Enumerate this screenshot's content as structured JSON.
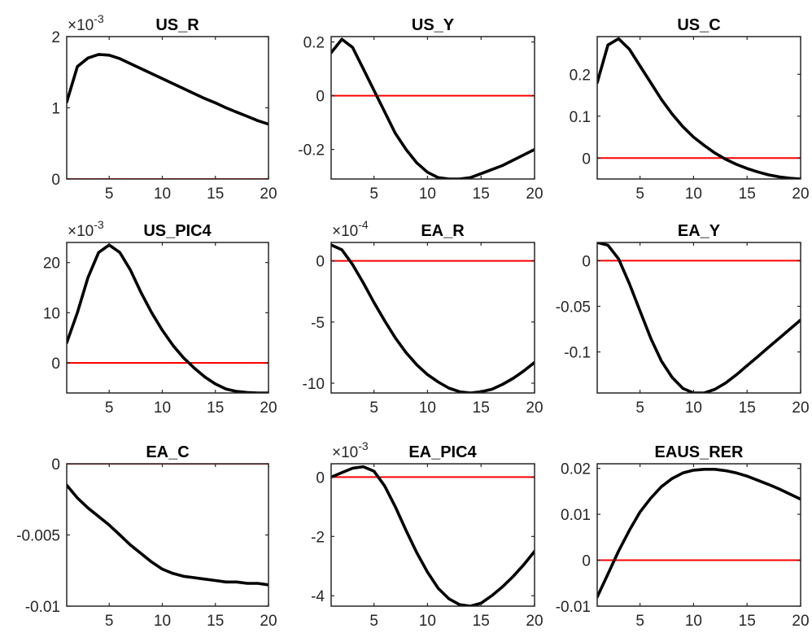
{
  "chart_data": [
    {
      "type": "line",
      "title": "US_R",
      "exponent": "-3",
      "xlim": [
        1,
        20
      ],
      "ylim": [
        0,
        2
      ],
      "xticks": [
        "5",
        "10",
        "15",
        "20"
      ],
      "yticks": [
        "0",
        "1",
        "2"
      ],
      "series": [
        {
          "color": "#000000",
          "x": [
            1,
            2,
            3,
            4,
            5,
            6,
            7,
            8,
            9,
            10,
            11,
            12,
            13,
            14,
            15,
            16,
            17,
            18,
            19,
            20
          ],
          "y": [
            1.08,
            1.58,
            1.7,
            1.75,
            1.74,
            1.69,
            1.62,
            1.55,
            1.48,
            1.41,
            1.34,
            1.27,
            1.2,
            1.13,
            1.07,
            1.0,
            0.94,
            0.88,
            0.82,
            0.77
          ]
        },
        {
          "color": "#ff0000",
          "x": [
            1,
            20
          ],
          "y": [
            0,
            0
          ]
        }
      ]
    },
    {
      "type": "line",
      "title": "US_Y",
      "xlim": [
        1,
        20
      ],
      "ylim": [
        -0.31,
        0.22
      ],
      "xticks": [
        "5",
        "10",
        "15",
        "20"
      ],
      "yticks": [
        "-0.2",
        "0",
        "0.2"
      ],
      "series": [
        {
          "color": "#000000",
          "x": [
            1,
            2,
            3,
            4,
            5,
            6,
            7,
            8,
            9,
            10,
            11,
            12,
            13,
            14,
            15,
            16,
            17,
            18,
            19,
            20
          ],
          "y": [
            0.16,
            0.21,
            0.18,
            0.1,
            0.02,
            -0.06,
            -0.14,
            -0.2,
            -0.25,
            -0.285,
            -0.305,
            -0.31,
            -0.31,
            -0.305,
            -0.29,
            -0.275,
            -0.26,
            -0.24,
            -0.22,
            -0.2
          ]
        },
        {
          "color": "#ff0000",
          "x": [
            1,
            20
          ],
          "y": [
            0,
            0
          ]
        }
      ]
    },
    {
      "type": "line",
      "title": "US_C",
      "xlim": [
        1,
        20
      ],
      "ylim": [
        -0.05,
        0.29
      ],
      "xticks": [
        "5",
        "10",
        "15",
        "20"
      ],
      "yticks": [
        "0",
        "0.1",
        "0.2"
      ],
      "series": [
        {
          "color": "#000000",
          "x": [
            1,
            2,
            3,
            4,
            5,
            6,
            7,
            8,
            9,
            10,
            11,
            12,
            13,
            14,
            15,
            16,
            17,
            18,
            19,
            20
          ],
          "y": [
            0.18,
            0.27,
            0.285,
            0.26,
            0.22,
            0.18,
            0.14,
            0.105,
            0.075,
            0.05,
            0.03,
            0.012,
            -0.003,
            -0.015,
            -0.025,
            -0.033,
            -0.04,
            -0.045,
            -0.048,
            -0.05
          ]
        },
        {
          "color": "#ff0000",
          "x": [
            1,
            20
          ],
          "y": [
            0,
            0
          ]
        }
      ]
    },
    {
      "type": "line",
      "title": "US_PIC4",
      "exponent": "-3",
      "xlim": [
        1,
        20
      ],
      "ylim": [
        -6,
        24
      ],
      "xticks": [
        "5",
        "10",
        "15",
        "20"
      ],
      "yticks": [
        "0",
        "10",
        "20"
      ],
      "series": [
        {
          "color": "#000000",
          "x": [
            1,
            2,
            3,
            4,
            5,
            6,
            7,
            8,
            9,
            10,
            11,
            12,
            13,
            14,
            15,
            16,
            17,
            18,
            19,
            20
          ],
          "y": [
            4,
            10,
            17,
            22,
            23.5,
            22,
            18.5,
            14,
            10,
            6.5,
            3.5,
            1,
            -1,
            -2.8,
            -4.2,
            -5.2,
            -5.7,
            -5.9,
            -6,
            -6
          ]
        },
        {
          "color": "#ff0000",
          "x": [
            1,
            20
          ],
          "y": [
            0,
            0
          ]
        }
      ]
    },
    {
      "type": "line",
      "title": "EA_R",
      "exponent": "-4",
      "xlim": [
        1,
        20
      ],
      "ylim": [
        -10.8,
        1.5
      ],
      "xticks": [
        "5",
        "10",
        "15",
        "20"
      ],
      "yticks": [
        "-10",
        "-5",
        "0"
      ],
      "series": [
        {
          "color": "#000000",
          "x": [
            1,
            2,
            3,
            4,
            5,
            6,
            7,
            8,
            9,
            10,
            11,
            12,
            13,
            14,
            15,
            16,
            17,
            18,
            19,
            20
          ],
          "y": [
            1.3,
            0.9,
            -0.3,
            -1.8,
            -3.4,
            -4.9,
            -6.3,
            -7.5,
            -8.5,
            -9.3,
            -9.9,
            -10.4,
            -10.7,
            -10.8,
            -10.7,
            -10.5,
            -10.1,
            -9.6,
            -9.0,
            -8.3
          ]
        },
        {
          "color": "#ff0000",
          "x": [
            1,
            20
          ],
          "y": [
            0,
            0
          ]
        }
      ]
    },
    {
      "type": "line",
      "title": "EA_Y",
      "xlim": [
        1,
        20
      ],
      "ylim": [
        -0.145,
        0.02
      ],
      "xticks": [
        "5",
        "10",
        "15",
        "20"
      ],
      "yticks": [
        "-0.1",
        "-0.05",
        "0"
      ],
      "series": [
        {
          "color": "#000000",
          "x": [
            1,
            2,
            3,
            4,
            5,
            6,
            7,
            8,
            9,
            10,
            11,
            12,
            13,
            14,
            15,
            16,
            17,
            18,
            19,
            20
          ],
          "y": [
            0.02,
            0.017,
            0.002,
            -0.025,
            -0.055,
            -0.085,
            -0.11,
            -0.128,
            -0.14,
            -0.145,
            -0.145,
            -0.141,
            -0.134,
            -0.125,
            -0.115,
            -0.105,
            -0.095,
            -0.085,
            -0.075,
            -0.065
          ]
        },
        {
          "color": "#ff0000",
          "x": [
            1,
            20
          ],
          "y": [
            0,
            0
          ]
        }
      ]
    },
    {
      "type": "line",
      "title": "EA_C",
      "xlim": [
        1,
        20
      ],
      "ylim": [
        -0.01,
        0
      ],
      "xticks": [
        "5",
        "10",
        "15",
        "20"
      ],
      "yticks": [
        "-0.01",
        "-0.005",
        "0"
      ],
      "series": [
        {
          "color": "#000000",
          "x": [
            1,
            2,
            3,
            4,
            5,
            6,
            7,
            8,
            9,
            10,
            11,
            12,
            13,
            14,
            15,
            16,
            17,
            18,
            19,
            20
          ],
          "y": [
            -0.0015,
            -0.0024,
            -0.0031,
            -0.0037,
            -0.0043,
            -0.005,
            -0.0057,
            -0.0063,
            -0.0069,
            -0.0074,
            -0.0077,
            -0.0079,
            -0.008,
            -0.0081,
            -0.0082,
            -0.0083,
            -0.0083,
            -0.0084,
            -0.0084,
            -0.0085
          ]
        },
        {
          "color": "#ff0000",
          "x": [
            1,
            20
          ],
          "y": [
            0,
            0
          ]
        }
      ]
    },
    {
      "type": "line",
      "title": "EA_PIC4",
      "exponent": "-3",
      "xlim": [
        1,
        20
      ],
      "ylim": [
        -4.35,
        0.45
      ],
      "xticks": [
        "5",
        "10",
        "15",
        "20"
      ],
      "yticks": [
        "-4",
        "-2",
        "0"
      ],
      "series": [
        {
          "color": "#000000",
          "x": [
            1,
            2,
            3,
            4,
            5,
            6,
            7,
            8,
            9,
            10,
            11,
            12,
            13,
            14,
            15,
            16,
            17,
            18,
            19,
            20
          ],
          "y": [
            0,
            0.15,
            0.3,
            0.35,
            0.2,
            -0.3,
            -1.0,
            -1.8,
            -2.55,
            -3.2,
            -3.75,
            -4.1,
            -4.3,
            -4.35,
            -4.25,
            -4.0,
            -3.7,
            -3.35,
            -2.95,
            -2.5
          ]
        },
        {
          "color": "#ff0000",
          "x": [
            1,
            20
          ],
          "y": [
            0,
            0
          ]
        }
      ]
    },
    {
      "type": "line",
      "title": "EAUS_RER",
      "xlim": [
        1,
        20
      ],
      "ylim": [
        -0.01,
        0.021
      ],
      "xticks": [
        "5",
        "10",
        "15",
        "20"
      ],
      "yticks": [
        "-0.01",
        "0",
        "0.01",
        "0.02"
      ],
      "series": [
        {
          "color": "#000000",
          "x": [
            1,
            2,
            3,
            4,
            5,
            6,
            7,
            8,
            9,
            10,
            11,
            12,
            13,
            14,
            15,
            16,
            17,
            18,
            19,
            20
          ],
          "y": [
            -0.008,
            -0.003,
            0.002,
            0.0065,
            0.0105,
            0.0135,
            0.016,
            0.0178,
            0.019,
            0.0196,
            0.0198,
            0.0198,
            0.0195,
            0.019,
            0.0183,
            0.0174,
            0.0165,
            0.0155,
            0.0144,
            0.0133
          ]
        },
        {
          "color": "#ff0000",
          "x": [
            1,
            20
          ],
          "y": [
            0,
            0
          ]
        }
      ]
    }
  ]
}
